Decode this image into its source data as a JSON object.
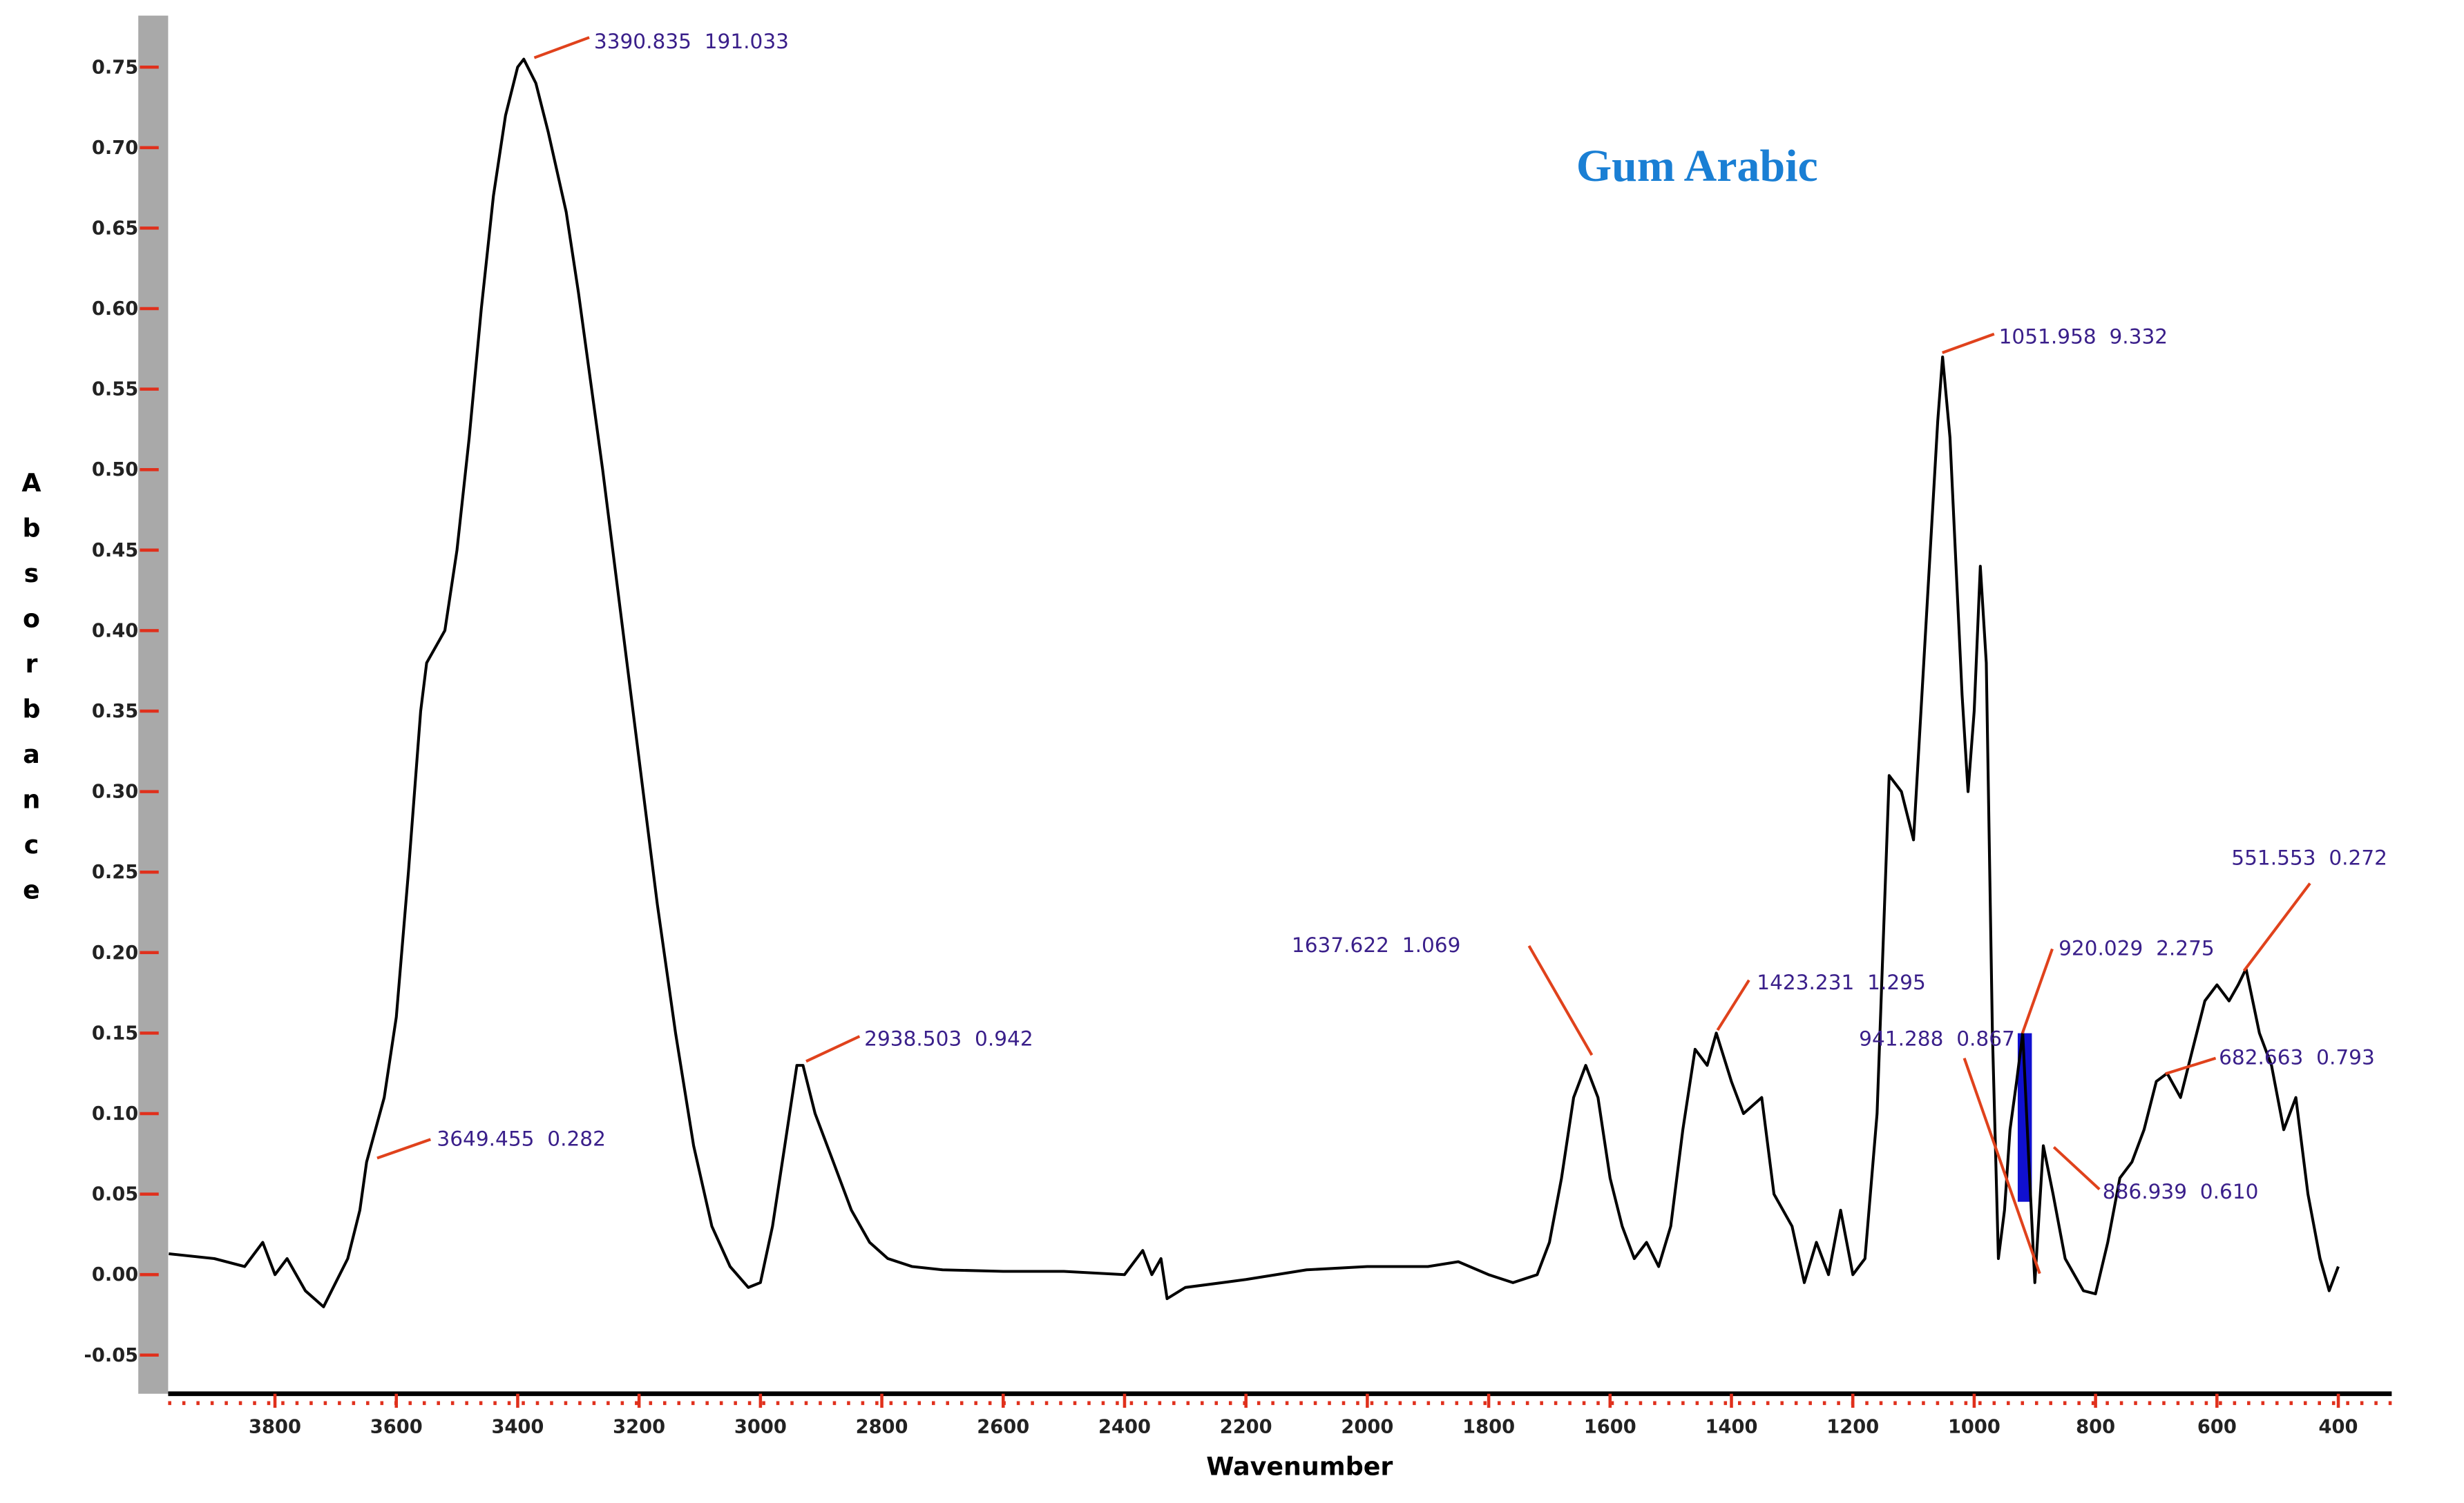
{
  "chart_data": {
    "type": "line",
    "title": "Gum Arabic",
    "x_label": "Wavenumber",
    "y_label": "Absorbance",
    "color": "#000000",
    "xlim": [
      3976,
      312
    ],
    "ylim": [
      -0.074,
      0.782
    ],
    "xticks": [
      3800,
      3600,
      3400,
      3200,
      3000,
      2800,
      2600,
      2400,
      2200,
      2000,
      1800,
      1600,
      1400,
      1200,
      1000,
      800,
      600,
      400
    ],
    "yticks": [
      -0.05,
      {
        "value": 0,
        "label": "0.00"
      },
      0.05,
      {
        "value": 0.1,
        "label": "0.10"
      },
      0.15,
      {
        "value": 0.2,
        "label": "0.20"
      },
      0.25,
      {
        "value": 0.3,
        "label": "0.30"
      },
      0.35,
      {
        "value": 0.4,
        "label": "0.40"
      },
      0.45,
      {
        "value": 0.5,
        "label": "0.50"
      },
      0.55,
      {
        "value": 0.6,
        "label": "0.60"
      },
      0.65,
      {
        "value": 0.7,
        "label": "0.70"
      },
      0.75
    ],
    "x": [
      3975,
      3900,
      3850,
      3820,
      3800,
      3780,
      3750,
      3720,
      3700,
      3680,
      3660,
      3649,
      3620,
      3600,
      3580,
      3560,
      3550,
      3520,
      3500,
      3480,
      3460,
      3440,
      3420,
      3400,
      3390,
      3370,
      3350,
      3320,
      3300,
      3260,
      3230,
      3200,
      3170,
      3140,
      3110,
      3080,
      3050,
      3020,
      3000,
      2980,
      2960,
      2940,
      2930,
      2910,
      2880,
      2850,
      2820,
      2790,
      2750,
      2700,
      2600,
      2500,
      2400,
      2370,
      2355,
      2340,
      2330,
      2300,
      2200,
      2100,
      2000,
      1900,
      1850,
      1800,
      1760,
      1720,
      1700,
      1680,
      1660,
      1640,
      1620,
      1600,
      1580,
      1560,
      1540,
      1520,
      1500,
      1480,
      1460,
      1440,
      1425,
      1400,
      1380,
      1350,
      1330,
      1300,
      1280,
      1260,
      1240,
      1220,
      1200,
      1180,
      1160,
      1140,
      1120,
      1100,
      1080,
      1060,
      1052,
      1040,
      1020,
      1010,
      1000,
      990,
      980,
      970,
      960,
      950,
      941,
      930,
      920,
      910,
      900,
      886,
      870,
      850,
      820,
      800,
      780,
      760,
      740,
      720,
      700,
      682,
      660,
      640,
      620,
      600,
      580,
      565,
      552,
      530,
      510,
      490,
      470,
      450,
      430,
      415,
      400
    ],
    "values": [
      0.013,
      0.01,
      0.005,
      0.02,
      0.0,
      0.01,
      -0.01,
      -0.02,
      -0.005,
      0.01,
      0.04,
      0.07,
      0.11,
      0.16,
      0.25,
      0.35,
      0.38,
      0.4,
      0.45,
      0.52,
      0.6,
      0.67,
      0.72,
      0.75,
      0.755,
      0.74,
      0.71,
      0.66,
      0.61,
      0.5,
      0.41,
      0.32,
      0.23,
      0.15,
      0.08,
      0.03,
      0.005,
      -0.008,
      -0.005,
      0.03,
      0.08,
      0.13,
      0.13,
      0.1,
      0.07,
      0.04,
      0.02,
      0.01,
      0.005,
      0.003,
      0.002,
      0.002,
      0.0,
      0.015,
      0.0,
      0.01,
      -0.015,
      -0.008,
      -0.003,
      0.003,
      0.005,
      0.005,
      0.008,
      0.0,
      -0.005,
      0.0,
      0.02,
      0.06,
      0.11,
      0.13,
      0.11,
      0.06,
      0.03,
      0.01,
      0.02,
      0.005,
      0.03,
      0.09,
      0.14,
      0.13,
      0.15,
      0.12,
      0.1,
      0.11,
      0.05,
      0.03,
      -0.005,
      0.02,
      0.0,
      0.04,
      0.0,
      0.01,
      0.1,
      0.31,
      0.3,
      0.27,
      0.4,
      0.53,
      0.57,
      0.52,
      0.36,
      0.3,
      0.35,
      0.44,
      0.38,
      0.15,
      0.01,
      0.04,
      0.09,
      0.12,
      0.15,
      0.07,
      -0.005,
      0.08,
      0.05,
      0.01,
      -0.01,
      -0.012,
      0.02,
      0.06,
      0.07,
      0.09,
      0.12,
      0.125,
      0.11,
      0.14,
      0.17,
      0.18,
      0.17,
      0.18,
      0.19,
      0.15,
      0.13,
      0.09,
      0.11,
      0.05,
      0.01,
      -0.01,
      0.005
    ],
    "annotations": [
      "3390.835  191.033",
      "3649.455  0.282",
      "2938.503  0.942",
      "1637.622  1.069",
      "1423.231  1.295",
      "1051.958  9.332",
      "920.029  2.275",
      "941.288  0.867",
      "886.939  0.610",
      "682.663  0.793",
      "551.553  0.272"
    ]
  }
}
